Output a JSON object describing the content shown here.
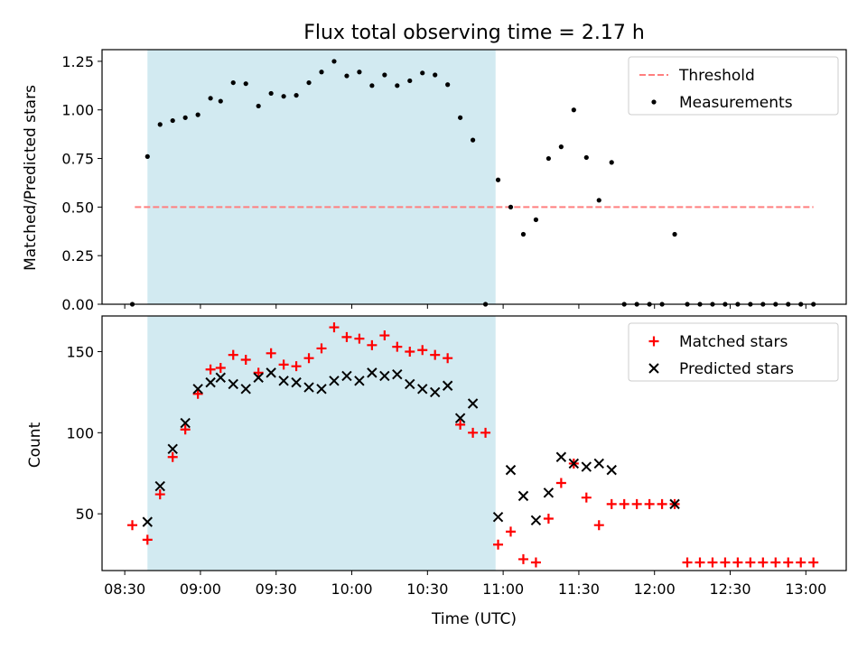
{
  "chart_data": [
    {
      "type": "scatter",
      "title": "Flux total observing time = 2.17 h",
      "ylabel": "Matched/Predicted stars",
      "xlabel": "",
      "xlim": [
        "08:21",
        "13:16"
      ],
      "ylim": [
        0,
        1.31
      ],
      "yticks": [
        "0.00",
        "0.25",
        "0.50",
        "0.75",
        "1.00",
        "1.25"
      ],
      "shaded_span": [
        "08:39",
        "10:57"
      ],
      "threshold": {
        "name": "Threshold",
        "value": 0.5,
        "x_range": [
          "08:34",
          "13:03"
        ],
        "color": "#ff7f7f"
      },
      "legend": "top-right",
      "series": [
        {
          "name": "Measurements",
          "color": "#000000",
          "points": [
            [
              "08:33",
              0.0
            ],
            [
              "08:39",
              0.76
            ],
            [
              "08:44",
              0.925
            ],
            [
              "08:49",
              0.945
            ],
            [
              "08:54",
              0.96
            ],
            [
              "08:59",
              0.975
            ],
            [
              "09:04",
              1.06
            ],
            [
              "09:08",
              1.045
            ],
            [
              "09:13",
              1.14
            ],
            [
              "09:18",
              1.135
            ],
            [
              "09:23",
              1.02
            ],
            [
              "09:28",
              1.085
            ],
            [
              "09:33",
              1.07
            ],
            [
              "09:38",
              1.075
            ],
            [
              "09:43",
              1.14
            ],
            [
              "09:48",
              1.195
            ],
            [
              "09:53",
              1.25
            ],
            [
              "09:58",
              1.175
            ],
            [
              "10:03",
              1.195
            ],
            [
              "10:08",
              1.125
            ],
            [
              "10:13",
              1.18
            ],
            [
              "10:18",
              1.125
            ],
            [
              "10:23",
              1.15
            ],
            [
              "10:28",
              1.19
            ],
            [
              "10:33",
              1.18
            ],
            [
              "10:38",
              1.13
            ],
            [
              "10:43",
              0.96
            ],
            [
              "10:48",
              0.845
            ],
            [
              "10:53",
              0.0
            ],
            [
              "10:58",
              0.64
            ],
            [
              "11:03",
              0.5
            ],
            [
              "11:08",
              0.36
            ],
            [
              "11:13",
              0.435
            ],
            [
              "11:18",
              0.75
            ],
            [
              "11:23",
              0.81
            ],
            [
              "11:28",
              1.0
            ],
            [
              "11:33",
              0.755
            ],
            [
              "11:38",
              0.535
            ],
            [
              "11:43",
              0.73
            ],
            [
              "11:48",
              0.0
            ],
            [
              "11:53",
              0.0
            ],
            [
              "11:58",
              0.0
            ],
            [
              "12:03",
              0.0
            ],
            [
              "12:08",
              0.36
            ],
            [
              "12:13",
              0.0
            ],
            [
              "12:18",
              0.0
            ],
            [
              "12:23",
              0.0
            ],
            [
              "12:28",
              0.0
            ],
            [
              "12:33",
              0.0
            ],
            [
              "12:38",
              0.0
            ],
            [
              "12:43",
              0.0
            ],
            [
              "12:48",
              0.0
            ],
            [
              "12:53",
              0.0
            ],
            [
              "12:58",
              0.0
            ],
            [
              "13:03",
              0.0
            ]
          ]
        }
      ]
    },
    {
      "type": "scatter",
      "title": "",
      "ylabel": "Count",
      "xlabel": "Time (UTC)",
      "xlim": [
        "08:21",
        "13:16"
      ],
      "ylim": [
        15,
        172
      ],
      "yticks": [
        "50",
        "100",
        "150"
      ],
      "xticks": [
        "08:30",
        "09:00",
        "09:30",
        "10:00",
        "10:30",
        "11:00",
        "11:30",
        "12:00",
        "12:30",
        "13:00"
      ],
      "shaded_span": [
        "08:39",
        "10:57"
      ],
      "legend": "top-right",
      "series": [
        {
          "name": "Matched stars",
          "color": "#ff0000",
          "points": [
            [
              "08:33",
              43
            ],
            [
              "08:39",
              34
            ],
            [
              "08:44",
              62
            ],
            [
              "08:49",
              85
            ],
            [
              "08:54",
              102
            ],
            [
              "08:59",
              124
            ],
            [
              "09:04",
              139
            ],
            [
              "09:08",
              140
            ],
            [
              "09:13",
              148
            ],
            [
              "09:18",
              145
            ],
            [
              "09:23",
              137
            ],
            [
              "09:28",
              149
            ],
            [
              "09:33",
              142
            ],
            [
              "09:38",
              141
            ],
            [
              "09:43",
              146
            ],
            [
              "09:48",
              152
            ],
            [
              "09:53",
              165
            ],
            [
              "09:58",
              159
            ],
            [
              "10:03",
              158
            ],
            [
              "10:08",
              154
            ],
            [
              "10:13",
              160
            ],
            [
              "10:18",
              153
            ],
            [
              "10:23",
              150
            ],
            [
              "10:28",
              151
            ],
            [
              "10:33",
              148
            ],
            [
              "10:38",
              146
            ],
            [
              "10:43",
              105
            ],
            [
              "10:48",
              100
            ],
            [
              "10:53",
              100
            ],
            [
              "10:58",
              31
            ],
            [
              "11:03",
              39
            ],
            [
              "11:08",
              22
            ],
            [
              "11:13",
              20
            ],
            [
              "11:18",
              47
            ],
            [
              "11:23",
              69
            ],
            [
              "11:28",
              81
            ],
            [
              "11:33",
              60
            ],
            [
              "11:38",
              43
            ],
            [
              "11:43",
              56
            ],
            [
              "11:48",
              56
            ],
            [
              "11:53",
              56
            ],
            [
              "11:58",
              56
            ],
            [
              "12:03",
              56
            ],
            [
              "12:08",
              56
            ],
            [
              "12:13",
              20
            ],
            [
              "12:18",
              20
            ],
            [
              "12:23",
              20
            ],
            [
              "12:28",
              20
            ],
            [
              "12:33",
              20
            ],
            [
              "12:38",
              20
            ],
            [
              "12:43",
              20
            ],
            [
              "12:48",
              20
            ],
            [
              "12:53",
              20
            ],
            [
              "12:58",
              20
            ],
            [
              "13:03",
              20
            ]
          ]
        },
        {
          "name": "Predicted stars",
          "color": "#000000",
          "points": [
            [
              "08:39",
              45
            ],
            [
              "08:44",
              67
            ],
            [
              "08:49",
              90
            ],
            [
              "08:54",
              106
            ],
            [
              "08:59",
              127
            ],
            [
              "09:04",
              131
            ],
            [
              "09:08",
              134
            ],
            [
              "09:13",
              130
            ],
            [
              "09:18",
              127
            ],
            [
              "09:23",
              134
            ],
            [
              "09:28",
              137
            ],
            [
              "09:33",
              132
            ],
            [
              "09:38",
              131
            ],
            [
              "09:43",
              128
            ],
            [
              "09:48",
              127
            ],
            [
              "09:53",
              132
            ],
            [
              "09:58",
              135
            ],
            [
              "10:03",
              132
            ],
            [
              "10:08",
              137
            ],
            [
              "10:13",
              135
            ],
            [
              "10:18",
              136
            ],
            [
              "10:23",
              130
            ],
            [
              "10:28",
              127
            ],
            [
              "10:33",
              125
            ],
            [
              "10:38",
              129
            ],
            [
              "10:43",
              109
            ],
            [
              "10:48",
              118
            ],
            [
              "10:58",
              48
            ],
            [
              "11:03",
              77
            ],
            [
              "11:08",
              61
            ],
            [
              "11:13",
              46
            ],
            [
              "11:18",
              63
            ],
            [
              "11:23",
              85
            ],
            [
              "11:28",
              81
            ],
            [
              "11:33",
              79
            ],
            [
              "11:38",
              81
            ],
            [
              "11:43",
              77
            ],
            [
              "12:08",
              56
            ]
          ]
        }
      ]
    }
  ]
}
